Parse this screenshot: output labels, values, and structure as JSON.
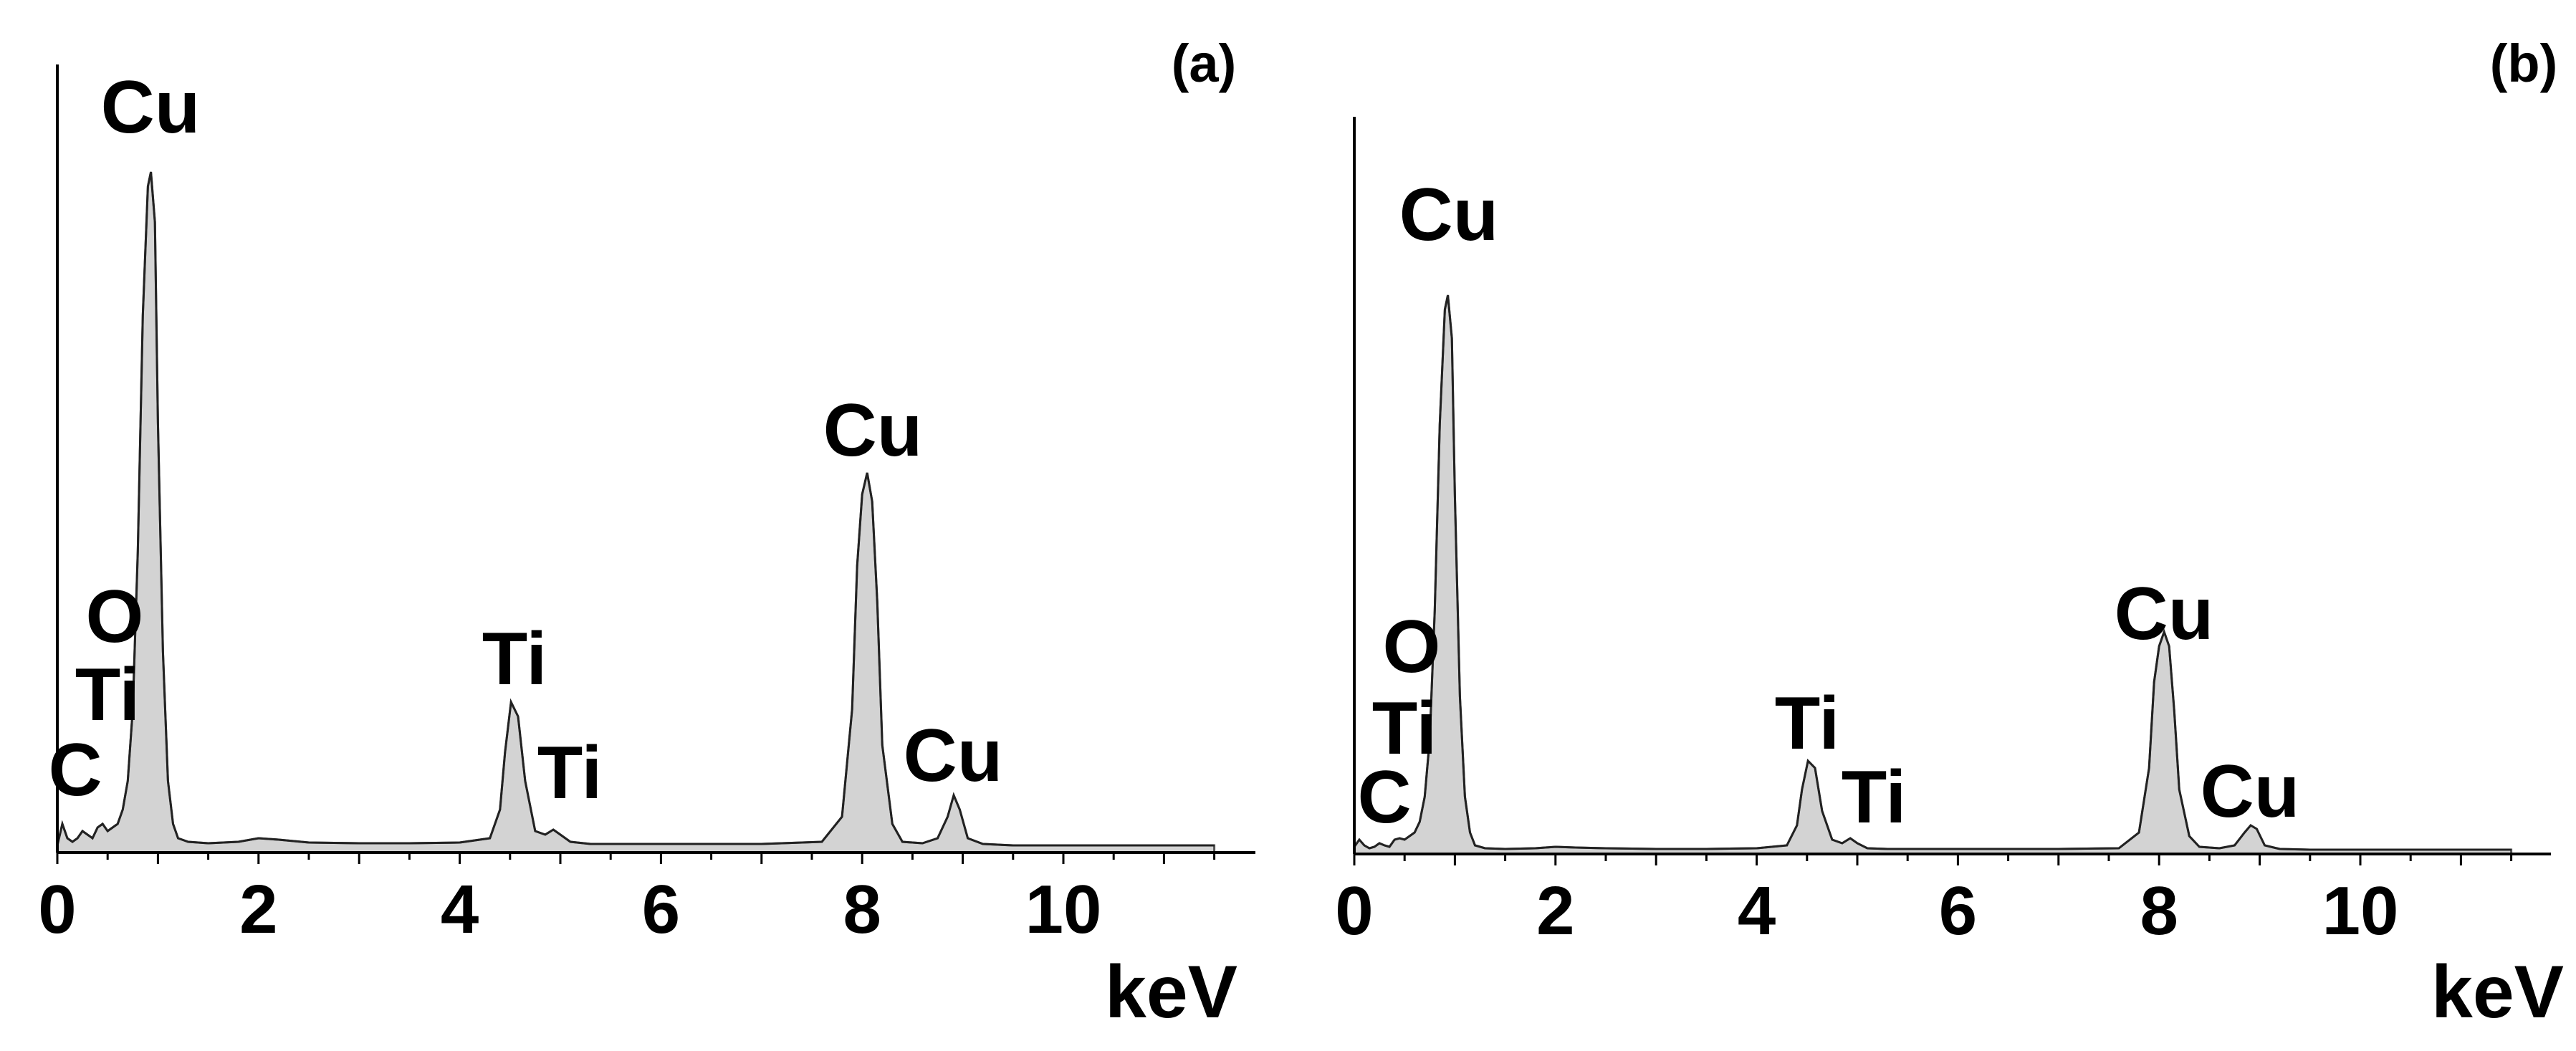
{
  "chart_data": [
    {
      "type": "area",
      "panel_label": "(a)",
      "xlabel": "keV",
      "ylabel": "",
      "xlim": [
        0,
        11.8
      ],
      "ylim": [
        0,
        1.0
      ],
      "grid": false,
      "x_ticks": [
        0,
        2,
        4,
        6,
        8,
        10
      ],
      "tick_labels": [
        "0",
        "2",
        "4",
        "6",
        "8",
        "10"
      ],
      "y_tick_labels": [],
      "peaks": [
        {
          "label": "C",
          "x": 0.28,
          "y": 0.03
        },
        {
          "label": "O",
          "x": 0.52,
          "y": 0.05
        },
        {
          "label": "Ti",
          "x": 0.45,
          "y": 0.04
        },
        {
          "label": "Cu",
          "x": 0.93,
          "y": 0.95
        },
        {
          "label": "Ti",
          "x": 4.51,
          "y": 0.21
        },
        {
          "label": "Ti",
          "x": 4.93,
          "y": 0.03
        },
        {
          "label": "Cu",
          "x": 8.05,
          "y": 0.53
        },
        {
          "label": "Cu",
          "x": 8.91,
          "y": 0.08
        }
      ],
      "series": [
        {
          "x": [
            0.0,
            0.05,
            0.1,
            0.15,
            0.2,
            0.25,
            0.3,
            0.35,
            0.4,
            0.45,
            0.5,
            0.55,
            0.6,
            0.65,
            0.7,
            0.75,
            0.8,
            0.85,
            0.9,
            0.93,
            0.97,
            1.0,
            1.05,
            1.1,
            1.15,
            1.2,
            1.3,
            1.5,
            1.8,
            2.0,
            2.2,
            2.5,
            3.0,
            3.5,
            4.0,
            4.3,
            4.4,
            4.45,
            4.51,
            4.58,
            4.65,
            4.75,
            4.85,
            4.93,
            5.0,
            5.1,
            5.3,
            6.0,
            7.0,
            7.6,
            7.8,
            7.9,
            7.95,
            8.0,
            8.05,
            8.1,
            8.15,
            8.2,
            8.3,
            8.4,
            8.6,
            8.75,
            8.85,
            8.91,
            8.97,
            9.05,
            9.2,
            9.5,
            10.0,
            10.5,
            11.0,
            11.5
          ],
          "y": [
            0.01,
            0.04,
            0.02,
            0.015,
            0.02,
            0.03,
            0.025,
            0.02,
            0.035,
            0.04,
            0.03,
            0.035,
            0.04,
            0.06,
            0.1,
            0.2,
            0.42,
            0.75,
            0.93,
            0.95,
            0.88,
            0.6,
            0.28,
            0.1,
            0.04,
            0.02,
            0.015,
            0.013,
            0.015,
            0.02,
            0.018,
            0.014,
            0.013,
            0.013,
            0.014,
            0.02,
            0.06,
            0.14,
            0.21,
            0.19,
            0.1,
            0.03,
            0.025,
            0.032,
            0.025,
            0.015,
            0.012,
            0.012,
            0.012,
            0.015,
            0.05,
            0.2,
            0.4,
            0.5,
            0.53,
            0.49,
            0.35,
            0.15,
            0.04,
            0.015,
            0.013,
            0.02,
            0.05,
            0.08,
            0.06,
            0.02,
            0.012,
            0.01,
            0.01,
            0.01,
            0.01,
            0.01
          ]
        }
      ]
    },
    {
      "type": "area",
      "panel_label": "(b)",
      "xlabel": "keV",
      "ylabel": "",
      "xlim": [
        0,
        11.8
      ],
      "ylim": [
        0,
        1.0
      ],
      "grid": false,
      "x_ticks": [
        0,
        2,
        4,
        6,
        8,
        10
      ],
      "tick_labels": [
        "0",
        "2",
        "4",
        "6",
        "8",
        "10"
      ],
      "y_tick_labels": [],
      "peaks": [
        {
          "label": "C",
          "x": 0.28,
          "y": 0.02
        },
        {
          "label": "O",
          "x": 0.52,
          "y": 0.03
        },
        {
          "label": "Ti",
          "x": 0.45,
          "y": 0.02
        },
        {
          "label": "Cu",
          "x": 0.93,
          "y": 0.78
        },
        {
          "label": "Ti",
          "x": 4.51,
          "y": 0.13
        },
        {
          "label": "Ti",
          "x": 4.93,
          "y": 0.025
        },
        {
          "label": "Cu",
          "x": 8.05,
          "y": 0.31
        },
        {
          "label": "Cu",
          "x": 8.91,
          "y": 0.04
        }
      ],
      "series": [
        {
          "x": [
            0.0,
            0.05,
            0.1,
            0.15,
            0.2,
            0.25,
            0.3,
            0.35,
            0.4,
            0.45,
            0.5,
            0.55,
            0.6,
            0.65,
            0.7,
            0.75,
            0.8,
            0.85,
            0.9,
            0.93,
            0.97,
            1.0,
            1.05,
            1.1,
            1.15,
            1.2,
            1.3,
            1.5,
            1.8,
            2.0,
            2.2,
            2.5,
            3.0,
            3.5,
            4.0,
            4.3,
            4.4,
            4.45,
            4.51,
            4.58,
            4.65,
            4.75,
            4.85,
            4.93,
            5.0,
            5.1,
            5.3,
            6.0,
            7.0,
            7.6,
            7.8,
            7.9,
            7.95,
            8.0,
            8.05,
            8.1,
            8.15,
            8.2,
            8.3,
            8.4,
            8.6,
            8.75,
            8.85,
            8.91,
            8.97,
            9.05,
            9.2,
            9.5,
            10.0,
            10.5,
            11.0,
            11.5
          ],
          "y": [
            0.01,
            0.02,
            0.012,
            0.008,
            0.01,
            0.015,
            0.012,
            0.01,
            0.02,
            0.022,
            0.02,
            0.025,
            0.03,
            0.045,
            0.08,
            0.16,
            0.34,
            0.6,
            0.76,
            0.78,
            0.72,
            0.5,
            0.22,
            0.08,
            0.03,
            0.012,
            0.008,
            0.007,
            0.008,
            0.01,
            0.009,
            0.008,
            0.007,
            0.007,
            0.008,
            0.012,
            0.04,
            0.09,
            0.13,
            0.12,
            0.06,
            0.02,
            0.015,
            0.022,
            0.015,
            0.008,
            0.007,
            0.007,
            0.007,
            0.008,
            0.03,
            0.12,
            0.24,
            0.29,
            0.31,
            0.29,
            0.2,
            0.09,
            0.025,
            0.01,
            0.008,
            0.012,
            0.03,
            0.04,
            0.035,
            0.012,
            0.007,
            0.006,
            0.006,
            0.006,
            0.006,
            0.006
          ]
        }
      ]
    }
  ]
}
